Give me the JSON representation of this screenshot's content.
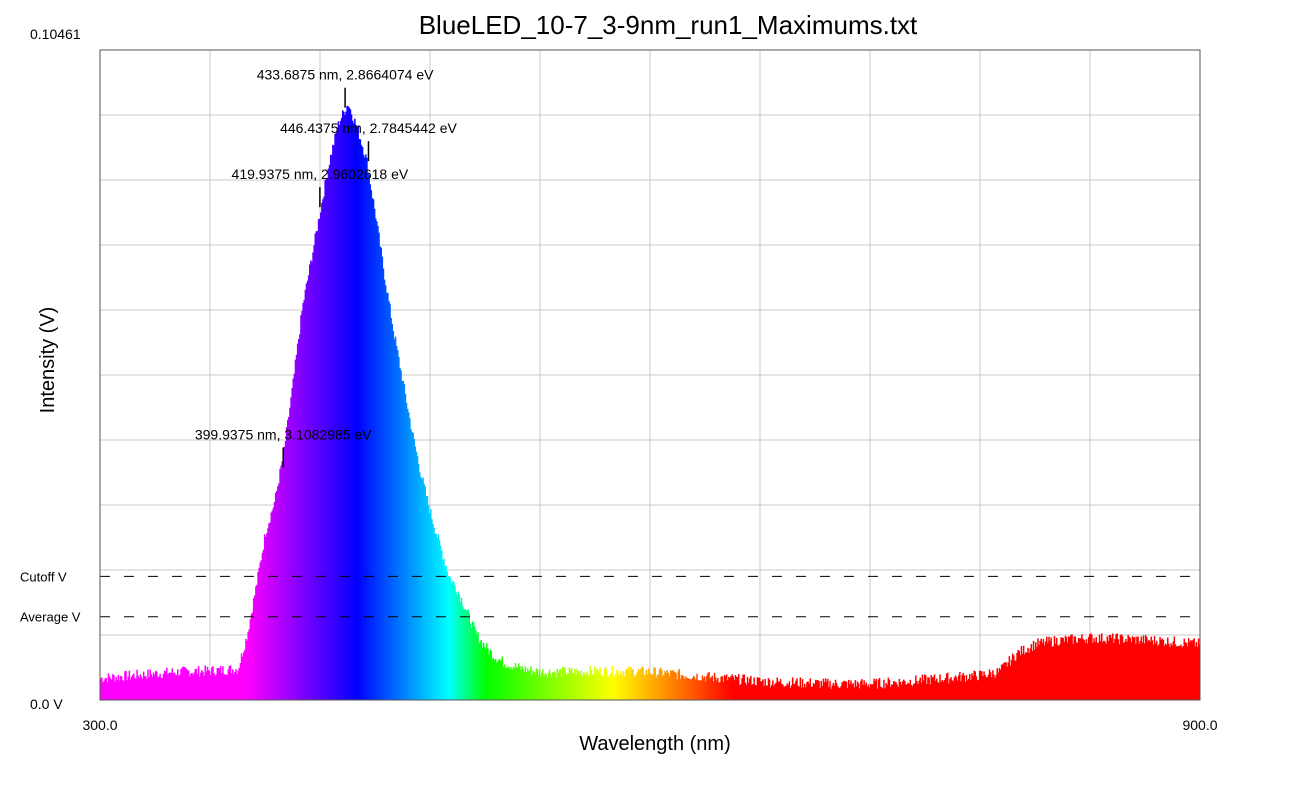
{
  "chart_data": {
    "type": "area",
    "title": "BlueLED_10-7_3-9nm_run1_Maximums.txt",
    "xlabel": "Wavelength (nm)",
    "ylabel": "Intensity (V)",
    "xlim": [
      300.0,
      900.0
    ],
    "ylim": [
      0.0,
      0.10461
    ],
    "x_tick_labels": [
      "300.0",
      "900.0"
    ],
    "y_tick_labels": [
      "0.0 V",
      "0.10461"
    ],
    "grid": true,
    "fill": "wavelength rainbow coloring",
    "reference_lines": [
      {
        "label": "Cutoff V",
        "value": 0.0199,
        "style": "dashed"
      },
      {
        "label": "Average V",
        "value": 0.0134,
        "style": "dashed"
      }
    ],
    "peaks": [
      {
        "label": "433.6875 nm, 2.8664074 eV",
        "x": 433.6875,
        "y": 0.095
      },
      {
        "label": "446.4375 nm, 2.7845442 eV",
        "x": 446.4375,
        "y": 0.0864
      },
      {
        "label": "419.9375 nm, 2.9602618 eV",
        "x": 419.9375,
        "y": 0.079
      },
      {
        "label": "399.9375 nm, 3.1082985 eV",
        "x": 399.9375,
        "y": 0.0371
      }
    ],
    "series": [
      {
        "x": [
          300,
          320,
          340,
          360,
          375,
          380,
          385,
          390,
          395,
          400,
          405,
          410,
          415,
          420,
          425,
          430,
          435,
          440,
          445,
          450,
          455,
          460,
          465,
          470,
          475,
          480,
          485,
          490,
          495,
          500,
          505,
          510,
          515,
          520,
          525,
          530,
          540,
          560,
          580,
          600,
          620,
          640,
          660,
          680,
          700,
          720,
          740,
          760,
          780,
          790,
          800,
          810,
          820,
          840,
          860,
          880,
          900
        ],
        "values": [
          0.0035,
          0.004,
          0.0045,
          0.0047,
          0.005,
          0.0105,
          0.0185,
          0.027,
          0.032,
          0.04,
          0.051,
          0.063,
          0.071,
          0.079,
          0.087,
          0.093,
          0.096,
          0.092,
          0.087,
          0.078,
          0.068,
          0.059,
          0.051,
          0.043,
          0.036,
          0.03,
          0.025,
          0.02,
          0.0175,
          0.014,
          0.0105,
          0.0085,
          0.007,
          0.006,
          0.0055,
          0.005,
          0.0045,
          0.0045,
          0.0047,
          0.0045,
          0.004,
          0.0035,
          0.003,
          0.0028,
          0.0026,
          0.0026,
          0.003,
          0.0035,
          0.004,
          0.0045,
          0.0075,
          0.009,
          0.0095,
          0.01,
          0.0098,
          0.0095,
          0.009
        ]
      }
    ]
  }
}
